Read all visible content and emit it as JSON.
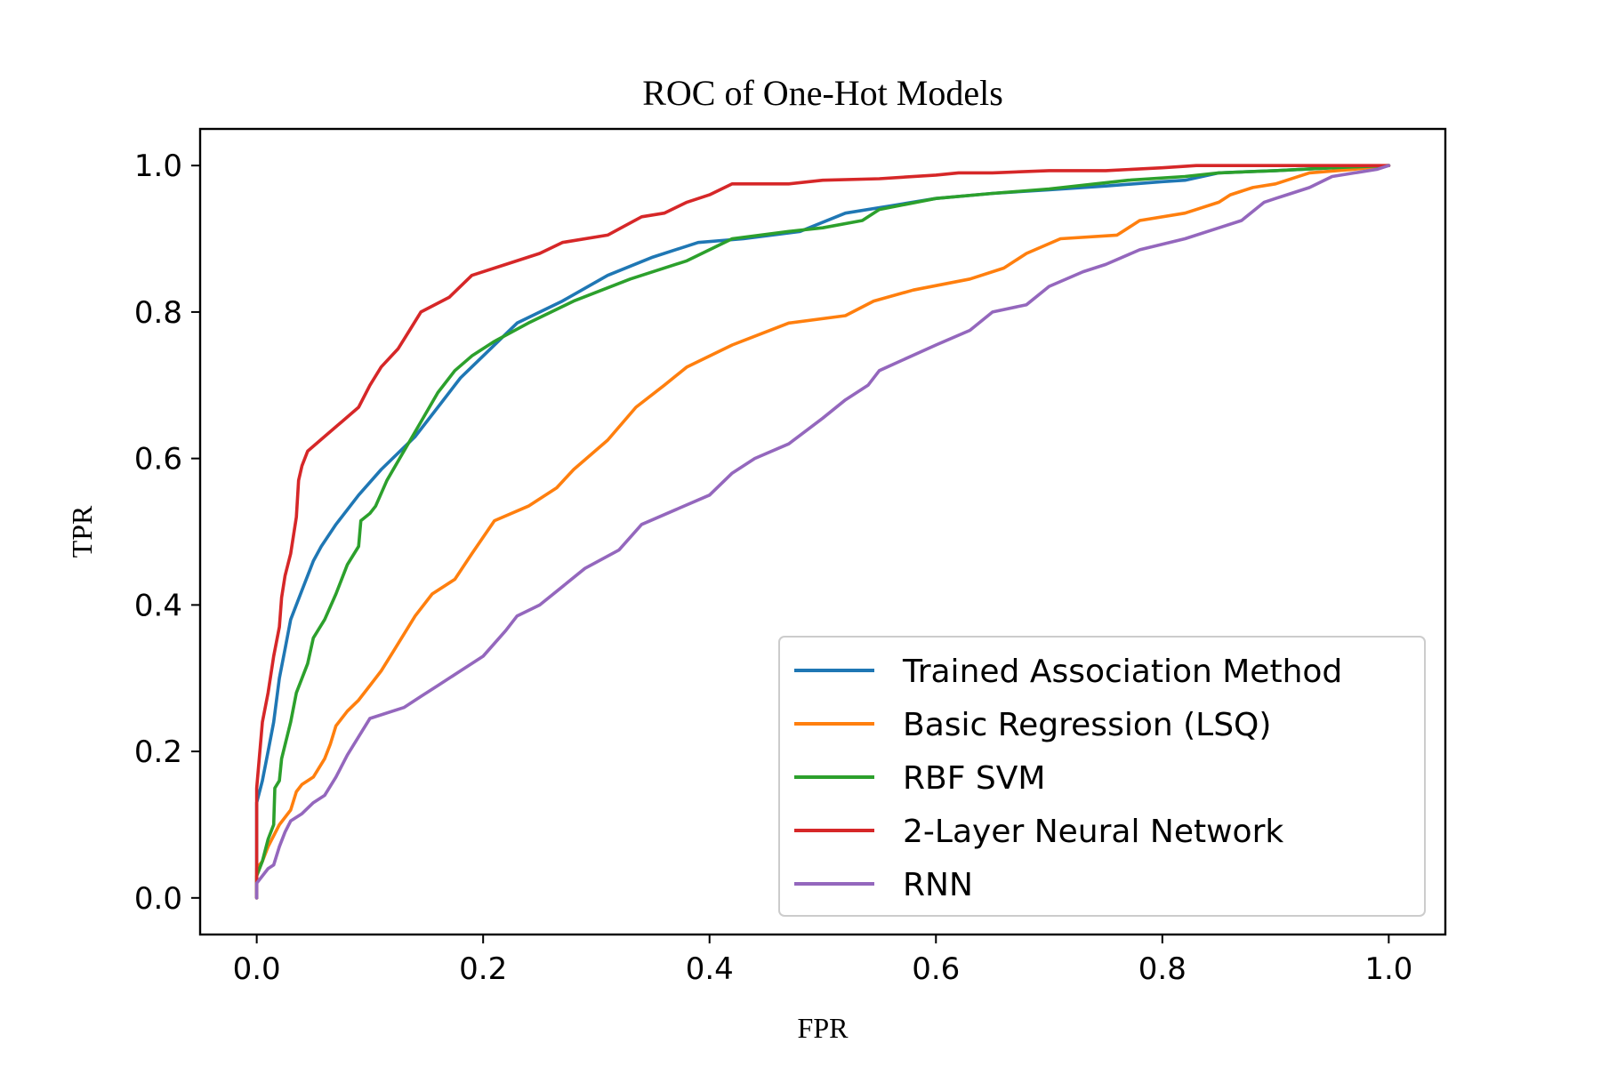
{
  "chart_data": {
    "type": "line",
    "title": "ROC of One-Hot Models",
    "xlabel": "FPR",
    "ylabel": "TPR",
    "xlim": [
      -0.05,
      1.05
    ],
    "ylim": [
      -0.05,
      1.05
    ],
    "xticks": [
      "0.0",
      "0.2",
      "0.4",
      "0.6",
      "0.8",
      "1.0"
    ],
    "yticks": [
      "0.0",
      "0.2",
      "0.4",
      "0.6",
      "0.8",
      "1.0"
    ],
    "grid": false,
    "legend_position": "lower-right",
    "series": [
      {
        "name": "Trained Association Method",
        "color": "#1f77b4",
        "points": [
          [
            0,
            0
          ],
          [
            0,
            0.13
          ],
          [
            0.005,
            0.16
          ],
          [
            0.01,
            0.2
          ],
          [
            0.015,
            0.24
          ],
          [
            0.02,
            0.3
          ],
          [
            0.025,
            0.34
          ],
          [
            0.03,
            0.38
          ],
          [
            0.04,
            0.42
          ],
          [
            0.05,
            0.46
          ],
          [
            0.057,
            0.48
          ],
          [
            0.07,
            0.51
          ],
          [
            0.09,
            0.55
          ],
          [
            0.11,
            0.585
          ],
          [
            0.14,
            0.63
          ],
          [
            0.16,
            0.67
          ],
          [
            0.18,
            0.71
          ],
          [
            0.2,
            0.74
          ],
          [
            0.23,
            0.785
          ],
          [
            0.27,
            0.815
          ],
          [
            0.31,
            0.85
          ],
          [
            0.35,
            0.875
          ],
          [
            0.39,
            0.895
          ],
          [
            0.43,
            0.9
          ],
          [
            0.48,
            0.91
          ],
          [
            0.52,
            0.935
          ],
          [
            0.56,
            0.945
          ],
          [
            0.6,
            0.955
          ],
          [
            0.65,
            0.962
          ],
          [
            0.7,
            0.967
          ],
          [
            0.75,
            0.972
          ],
          [
            0.8,
            0.978
          ],
          [
            0.82,
            0.98
          ],
          [
            0.85,
            0.99
          ],
          [
            0.9,
            0.993
          ],
          [
            0.95,
            0.997
          ],
          [
            1,
            1
          ]
        ]
      },
      {
        "name": "Basic Regression (LSQ)",
        "color": "#ff7f0e",
        "points": [
          [
            0,
            0
          ],
          [
            0,
            0.04
          ],
          [
            0.005,
            0.05
          ],
          [
            0.01,
            0.07
          ],
          [
            0.02,
            0.1
          ],
          [
            0.03,
            0.12
          ],
          [
            0.035,
            0.145
          ],
          [
            0.04,
            0.155
          ],
          [
            0.05,
            0.165
          ],
          [
            0.06,
            0.19
          ],
          [
            0.065,
            0.21
          ],
          [
            0.07,
            0.235
          ],
          [
            0.08,
            0.255
          ],
          [
            0.09,
            0.27
          ],
          [
            0.1,
            0.29
          ],
          [
            0.11,
            0.31
          ],
          [
            0.12,
            0.335
          ],
          [
            0.13,
            0.36
          ],
          [
            0.14,
            0.385
          ],
          [
            0.155,
            0.415
          ],
          [
            0.175,
            0.435
          ],
          [
            0.19,
            0.47
          ],
          [
            0.21,
            0.515
          ],
          [
            0.24,
            0.535
          ],
          [
            0.265,
            0.56
          ],
          [
            0.28,
            0.585
          ],
          [
            0.31,
            0.625
          ],
          [
            0.335,
            0.67
          ],
          [
            0.36,
            0.7
          ],
          [
            0.38,
            0.725
          ],
          [
            0.42,
            0.755
          ],
          [
            0.47,
            0.785
          ],
          [
            0.52,
            0.795
          ],
          [
            0.545,
            0.815
          ],
          [
            0.58,
            0.83
          ],
          [
            0.63,
            0.845
          ],
          [
            0.66,
            0.86
          ],
          [
            0.68,
            0.88
          ],
          [
            0.71,
            0.9
          ],
          [
            0.76,
            0.905
          ],
          [
            0.78,
            0.925
          ],
          [
            0.82,
            0.935
          ],
          [
            0.85,
            0.95
          ],
          [
            0.86,
            0.96
          ],
          [
            0.88,
            0.97
          ],
          [
            0.9,
            0.975
          ],
          [
            0.91,
            0.98
          ],
          [
            0.93,
            0.99
          ],
          [
            0.97,
            0.995
          ],
          [
            1,
            1
          ]
        ]
      },
      {
        "name": "RBF SVM",
        "color": "#2ca02c",
        "points": [
          [
            0,
            0
          ],
          [
            0,
            0.03
          ],
          [
            0.005,
            0.05
          ],
          [
            0.01,
            0.08
          ],
          [
            0.015,
            0.1
          ],
          [
            0.016,
            0.15
          ],
          [
            0.02,
            0.16
          ],
          [
            0.022,
            0.19
          ],
          [
            0.03,
            0.24
          ],
          [
            0.035,
            0.28
          ],
          [
            0.045,
            0.32
          ],
          [
            0.05,
            0.355
          ],
          [
            0.06,
            0.38
          ],
          [
            0.07,
            0.415
          ],
          [
            0.08,
            0.455
          ],
          [
            0.09,
            0.48
          ],
          [
            0.092,
            0.515
          ],
          [
            0.1,
            0.525
          ],
          [
            0.105,
            0.535
          ],
          [
            0.115,
            0.57
          ],
          [
            0.13,
            0.61
          ],
          [
            0.145,
            0.65
          ],
          [
            0.16,
            0.69
          ],
          [
            0.175,
            0.72
          ],
          [
            0.19,
            0.74
          ],
          [
            0.21,
            0.76
          ],
          [
            0.24,
            0.785
          ],
          [
            0.28,
            0.815
          ],
          [
            0.33,
            0.845
          ],
          [
            0.38,
            0.87
          ],
          [
            0.42,
            0.9
          ],
          [
            0.47,
            0.91
          ],
          [
            0.5,
            0.915
          ],
          [
            0.535,
            0.925
          ],
          [
            0.55,
            0.94
          ],
          [
            0.6,
            0.955
          ],
          [
            0.65,
            0.962
          ],
          [
            0.7,
            0.968
          ],
          [
            0.77,
            0.98
          ],
          [
            0.82,
            0.985
          ],
          [
            0.85,
            0.99
          ],
          [
            0.9,
            0.993
          ],
          [
            0.95,
            0.997
          ],
          [
            1,
            1
          ]
        ]
      },
      {
        "name": "2-Layer Neural Network",
        "color": "#d62728",
        "points": [
          [
            0,
            0
          ],
          [
            0,
            0.15
          ],
          [
            0.005,
            0.24
          ],
          [
            0.01,
            0.28
          ],
          [
            0.015,
            0.33
          ],
          [
            0.02,
            0.37
          ],
          [
            0.022,
            0.41
          ],
          [
            0.025,
            0.44
          ],
          [
            0.03,
            0.47
          ],
          [
            0.035,
            0.52
          ],
          [
            0.037,
            0.57
          ],
          [
            0.04,
            0.59
          ],
          [
            0.045,
            0.61
          ],
          [
            0.06,
            0.63
          ],
          [
            0.075,
            0.65
          ],
          [
            0.09,
            0.67
          ],
          [
            0.1,
            0.7
          ],
          [
            0.11,
            0.725
          ],
          [
            0.125,
            0.75
          ],
          [
            0.135,
            0.775
          ],
          [
            0.145,
            0.8
          ],
          [
            0.17,
            0.82
          ],
          [
            0.19,
            0.85
          ],
          [
            0.22,
            0.865
          ],
          [
            0.25,
            0.88
          ],
          [
            0.27,
            0.895
          ],
          [
            0.31,
            0.905
          ],
          [
            0.34,
            0.93
          ],
          [
            0.36,
            0.935
          ],
          [
            0.38,
            0.95
          ],
          [
            0.4,
            0.96
          ],
          [
            0.42,
            0.975
          ],
          [
            0.47,
            0.975
          ],
          [
            0.5,
            0.98
          ],
          [
            0.55,
            0.982
          ],
          [
            0.6,
            0.987
          ],
          [
            0.62,
            0.99
          ],
          [
            0.65,
            0.99
          ],
          [
            0.7,
            0.993
          ],
          [
            0.75,
            0.993
          ],
          [
            0.8,
            0.997
          ],
          [
            0.83,
            1
          ],
          [
            1,
            1
          ]
        ]
      },
      {
        "name": "RNN",
        "color": "#9467bd",
        "points": [
          [
            0,
            0
          ],
          [
            0,
            0.02
          ],
          [
            0.005,
            0.03
          ],
          [
            0.01,
            0.04
          ],
          [
            0.015,
            0.045
          ],
          [
            0.02,
            0.07
          ],
          [
            0.025,
            0.09
          ],
          [
            0.03,
            0.105
          ],
          [
            0.04,
            0.115
          ],
          [
            0.05,
            0.13
          ],
          [
            0.06,
            0.14
          ],
          [
            0.07,
            0.165
          ],
          [
            0.08,
            0.195
          ],
          [
            0.09,
            0.22
          ],
          [
            0.1,
            0.245
          ],
          [
            0.13,
            0.26
          ],
          [
            0.145,
            0.275
          ],
          [
            0.16,
            0.29
          ],
          [
            0.18,
            0.31
          ],
          [
            0.2,
            0.33
          ],
          [
            0.22,
            0.365
          ],
          [
            0.23,
            0.385
          ],
          [
            0.25,
            0.4
          ],
          [
            0.27,
            0.425
          ],
          [
            0.29,
            0.45
          ],
          [
            0.32,
            0.475
          ],
          [
            0.34,
            0.51
          ],
          [
            0.37,
            0.53
          ],
          [
            0.4,
            0.55
          ],
          [
            0.42,
            0.58
          ],
          [
            0.44,
            0.6
          ],
          [
            0.47,
            0.62
          ],
          [
            0.5,
            0.655
          ],
          [
            0.52,
            0.68
          ],
          [
            0.54,
            0.7
          ],
          [
            0.55,
            0.72
          ],
          [
            0.6,
            0.755
          ],
          [
            0.63,
            0.775
          ],
          [
            0.65,
            0.8
          ],
          [
            0.68,
            0.81
          ],
          [
            0.7,
            0.835
          ],
          [
            0.73,
            0.855
          ],
          [
            0.75,
            0.865
          ],
          [
            0.78,
            0.885
          ],
          [
            0.82,
            0.9
          ],
          [
            0.85,
            0.915
          ],
          [
            0.87,
            0.925
          ],
          [
            0.89,
            0.95
          ],
          [
            0.9,
            0.955
          ],
          [
            0.91,
            0.96
          ],
          [
            0.93,
            0.97
          ],
          [
            0.95,
            0.985
          ],
          [
            0.97,
            0.99
          ],
          [
            0.99,
            0.995
          ],
          [
            1,
            1
          ]
        ]
      }
    ]
  }
}
